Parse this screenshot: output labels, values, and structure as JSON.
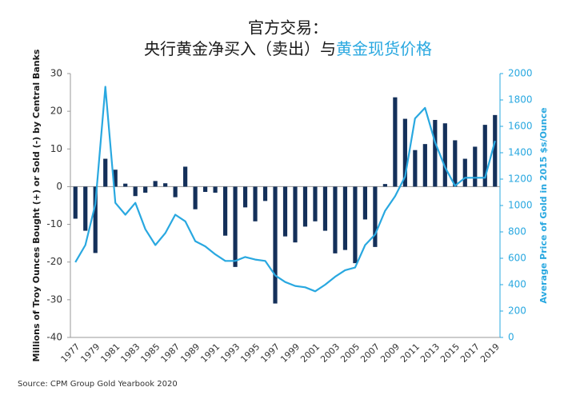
{
  "chart_data": {
    "type": "bar",
    "title": [
      "官方交易：",
      "央行黄金净买入（卖出）与",
      "黄金现货价格"
    ],
    "y_label": "Millions of Troy Ounces Bought (+) or Sold (-) by Central Banks",
    "y2_label": "Average Price of Gold in 2015 $s/Ounce",
    "source": "Source: CPM Group Gold Yearbook 2020",
    "categories": [
      "1977",
      null,
      "1979",
      null,
      "1981",
      null,
      "1983",
      null,
      "1985",
      null,
      "1987",
      null,
      "1989",
      null,
      "1991",
      null,
      "1993",
      null,
      "1995",
      null,
      "1997",
      null,
      "1999",
      null,
      "2001",
      null,
      "2003",
      null,
      "2005",
      null,
      "2007",
      null,
      "2009",
      null,
      "2011",
      null,
      "2013",
      null,
      "2015",
      null,
      "2017",
      null,
      "2019"
    ],
    "series": [
      {
        "type": "bar",
        "color": "#14305a",
        "values": [
          -8.5,
          -11.7,
          -17.6,
          7.4,
          4.5,
          0.8,
          -2.5,
          -1.6,
          1.5,
          0.9,
          -2.8,
          5.3,
          -6,
          -1.4,
          -1.6,
          -13,
          -21.3,
          -5.5,
          -9.2,
          -3.8,
          -31,
          -13.2,
          -14.8,
          -10.6,
          -9.2,
          -11.7,
          -17.7,
          -16.8,
          -20.3,
          -8.7,
          -16,
          0.7,
          23.7,
          18,
          9.7,
          11.3,
          17.7,
          16.8,
          12.3,
          7.4,
          10.6,
          16.4,
          19
        ]
      },
      {
        "type": "line",
        "axis": "y2",
        "color": "#29a8e0",
        "values": [
          570,
          700,
          1010,
          1900,
          1020,
          930,
          1020,
          820,
          700,
          790,
          930,
          880,
          730,
          690,
          630,
          580,
          580,
          610,
          590,
          580,
          470,
          420,
          390,
          380,
          350,
          400,
          460,
          510,
          530,
          700,
          780,
          960,
          1070,
          1220,
          1660,
          1740,
          1480,
          1290,
          1150,
          1210,
          1210,
          1210,
          1490
        ]
      }
    ],
    "ylim": [
      -40,
      30
    ],
    "yticks": [
      -40,
      -30,
      -20,
      -10,
      0,
      10,
      20,
      30
    ],
    "y2lim": [
      0,
      2000
    ],
    "y2ticks": [
      0,
      200,
      400,
      600,
      800,
      1000,
      1200,
      1400,
      1600,
      1800,
      2000
    ]
  }
}
